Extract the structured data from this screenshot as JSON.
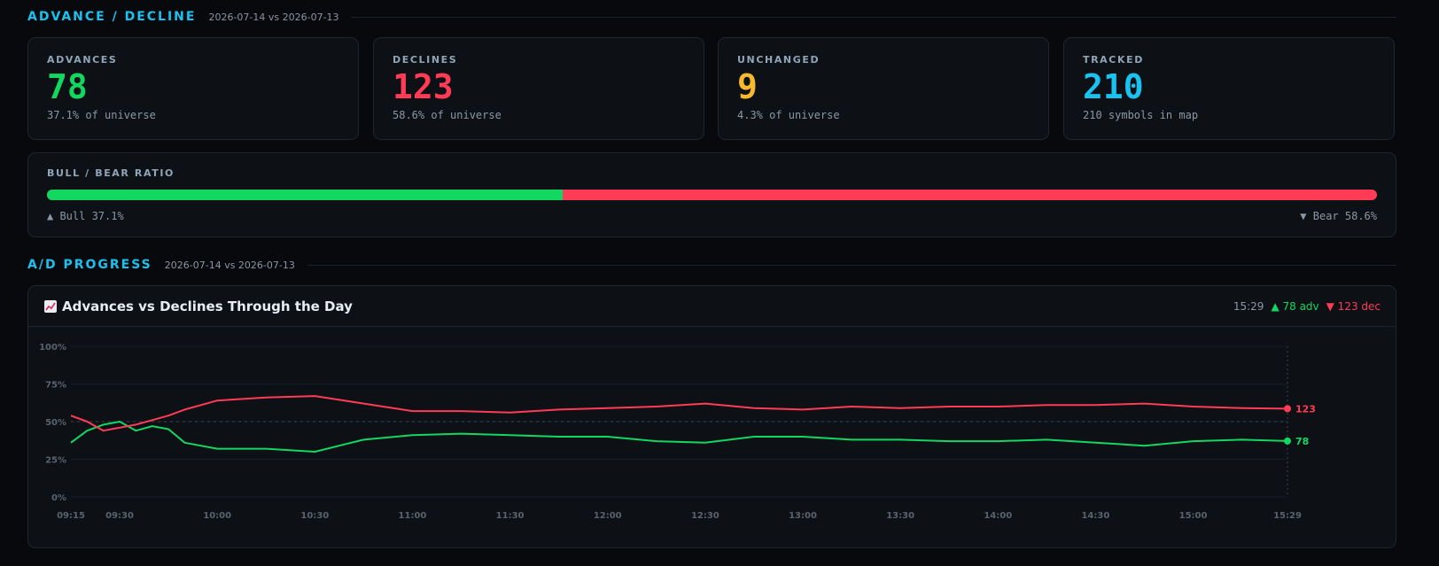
{
  "advance_decline": {
    "title": "ADVANCE / DECLINE",
    "date_compare": "2026-07-14 vs 2026-07-13"
  },
  "cards": [
    {
      "label": "ADVANCES",
      "value": "78",
      "note": "37.1% of universe",
      "color": "#12d760"
    },
    {
      "label": "DECLINES",
      "value": "123",
      "note": "58.6% of universe",
      "color": "#ff3b55"
    },
    {
      "label": "UNCHANGED",
      "value": "9",
      "note": "4.3% of universe",
      "color": "#f5b82e"
    },
    {
      "label": "TRACKED",
      "value": "210",
      "note": "210 symbols in map",
      "color": "#19c2ef"
    }
  ],
  "ratio": {
    "label": "BULL / BEAR RATIO",
    "bull_pct": 37.1,
    "bear_pct": 58.6,
    "bull_text": "▲ Bull 37.1%",
    "bear_text": "▼ Bear 58.6%",
    "bull_color": "#12d760",
    "bear_color": "#ff3b55"
  },
  "ad_progress": {
    "title": "A/D PROGRESS",
    "date_compare": "2026-07-14 vs 2026-07-13"
  },
  "chart_panel": {
    "title": "Advances vs Declines Through the Day",
    "icon": "chart-increasing-icon",
    "status_time": "15:29",
    "status_adv": "▲ 78 adv",
    "status_dec": "▼ 123 dec"
  },
  "chart_data": {
    "type": "line",
    "title": "Advances vs Declines Through the Day",
    "xlabel": "",
    "ylabel": "",
    "ylim": [
      0,
      100
    ],
    "y_ticks": [
      "0%",
      "25%",
      "50%",
      "75%",
      "100%"
    ],
    "x_ticks": [
      "09:15",
      "09:30",
      "10:00",
      "10:30",
      "11:00",
      "11:30",
      "12:00",
      "12:30",
      "13:00",
      "13:30",
      "14:00",
      "14:30",
      "15:00",
      "15:29"
    ],
    "grid": true,
    "reference_line": 50,
    "x": [
      "09:15",
      "09:20",
      "09:25",
      "09:30",
      "09:35",
      "09:40",
      "09:45",
      "09:50",
      "10:00",
      "10:15",
      "10:30",
      "10:45",
      "11:00",
      "11:15",
      "11:30",
      "11:45",
      "12:00",
      "12:15",
      "12:30",
      "12:45",
      "13:00",
      "13:15",
      "13:30",
      "13:45",
      "14:00",
      "14:15",
      "14:30",
      "14:45",
      "15:00",
      "15:15",
      "15:29"
    ],
    "series": [
      {
        "name": "adv",
        "color": "#12d760",
        "values": [
          36,
          44,
          48,
          50,
          44,
          47,
          45,
          36,
          32,
          32,
          30,
          38,
          41,
          42,
          41,
          40,
          40,
          37,
          36,
          40,
          40,
          38,
          38,
          37,
          37,
          38,
          36,
          34,
          37,
          38,
          37.1
        ],
        "end_label": "78"
      },
      {
        "name": "dec",
        "color": "#ff3b55",
        "values": [
          54,
          50,
          44,
          46,
          48,
          51,
          54,
          58,
          64,
          66,
          67,
          62,
          57,
          57,
          56,
          58,
          59,
          60,
          62,
          59,
          58,
          60,
          59,
          60,
          60,
          61,
          61,
          62,
          60,
          59,
          58.6
        ],
        "end_label": "123"
      }
    ]
  }
}
